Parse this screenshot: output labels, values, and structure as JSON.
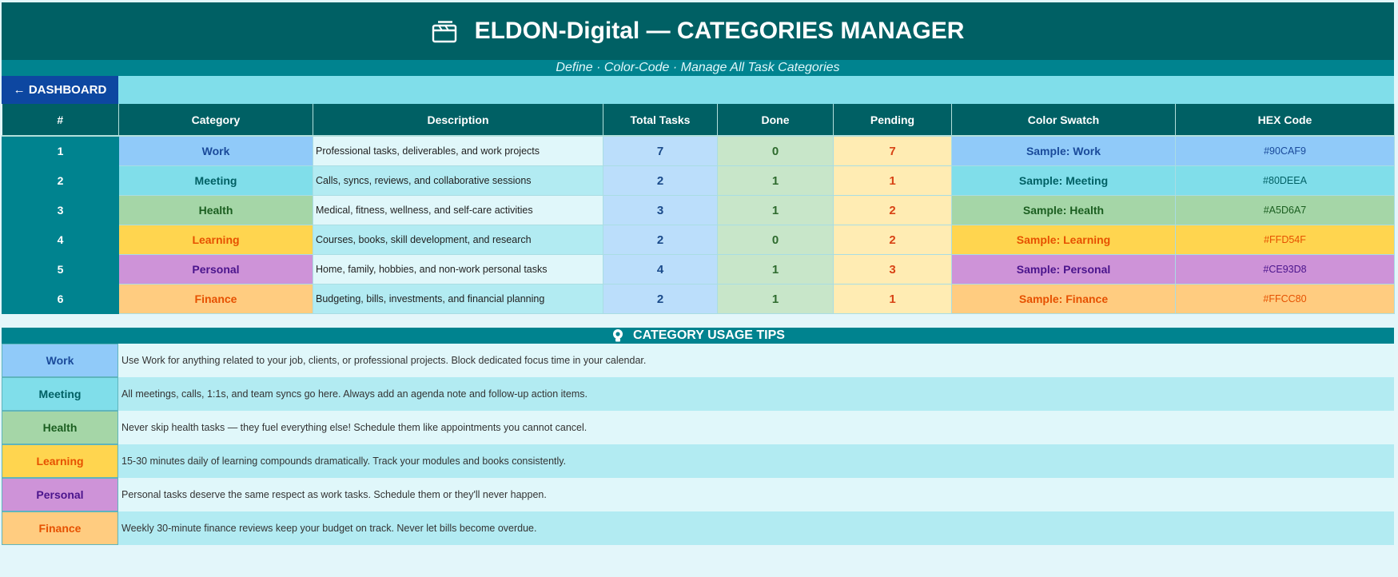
{
  "header": {
    "title": "ELDON-Digital — CATEGORIES MANAGER",
    "subtitle": "Define · Color-Code · Manage All Task Categories",
    "icon": "clapperboard-icon"
  },
  "nav": {
    "dashboard_label": "← DASHBOARD"
  },
  "table": {
    "columns": [
      "#",
      "Category",
      "Description",
      "Total Tasks",
      "Done",
      "Pending",
      "Color Swatch",
      "HEX Code"
    ],
    "rows": [
      {
        "num": "1",
        "category": "Work",
        "description": "Professional tasks, deliverables, and work projects",
        "total": "7",
        "done": "0",
        "pending": "7",
        "swatch": "Sample: Work",
        "hex": "#90CAF9",
        "bg": "#90caf9",
        "fg": "#1a4a9a"
      },
      {
        "num": "2",
        "category": "Meeting",
        "description": "Calls, syncs, reviews, and collaborative sessions",
        "total": "2",
        "done": "1",
        "pending": "1",
        "swatch": "Sample: Meeting",
        "hex": "#80DEEA",
        "bg": "#80deea",
        "fg": "#006064"
      },
      {
        "num": "3",
        "category": "Health",
        "description": "Medical, fitness, wellness, and self-care activities",
        "total": "3",
        "done": "1",
        "pending": "2",
        "swatch": "Sample: Health",
        "hex": "#A5D6A7",
        "bg": "#a5d6a7",
        "fg": "#1b5e20"
      },
      {
        "num": "4",
        "category": "Learning",
        "description": "Courses, books, skill development, and research",
        "total": "2",
        "done": "0",
        "pending": "2",
        "swatch": "Sample: Learning",
        "hex": "#FFD54F",
        "bg": "#ffd54f",
        "fg": "#e65100"
      },
      {
        "num": "5",
        "category": "Personal",
        "description": "Home, family, hobbies, and non-work personal tasks",
        "total": "4",
        "done": "1",
        "pending": "3",
        "swatch": "Sample: Personal",
        "hex": "#CE93D8",
        "bg": "#ce93d8",
        "fg": "#4a148c"
      },
      {
        "num": "6",
        "category": "Finance",
        "description": "Budgeting, bills, investments, and financial planning",
        "total": "2",
        "done": "1",
        "pending": "1",
        "swatch": "Sample: Finance",
        "hex": "#FFCC80",
        "bg": "#ffcc80",
        "fg": "#e65100"
      }
    ]
  },
  "tips": {
    "title": "CATEGORY USAGE TIPS",
    "icon": "lightbulb-icon",
    "items": [
      {
        "label": "Work",
        "text": "Use Work for anything related to your job, clients, or professional projects. Block dedicated focus time in your calendar.",
        "bg": "#90caf9",
        "fg": "#1a4a9a"
      },
      {
        "label": "Meeting",
        "text": "All meetings, calls, 1:1s, and team syncs go here. Always add an agenda note and follow-up action items.",
        "bg": "#80deea",
        "fg": "#006064"
      },
      {
        "label": "Health",
        "text": "Never skip health tasks — they fuel everything else! Schedule them like appointments you cannot cancel.",
        "bg": "#a5d6a7",
        "fg": "#1b5e20"
      },
      {
        "label": "Learning",
        "text": "15-30 minutes daily of learning compounds dramatically. Track your modules and books consistently.",
        "bg": "#ffd54f",
        "fg": "#e65100"
      },
      {
        "label": "Personal",
        "text": "Personal tasks deserve the same respect as work tasks. Schedule them or they'll never happen.",
        "bg": "#ce93d8",
        "fg": "#4a148c"
      },
      {
        "label": "Finance",
        "text": "Weekly 30-minute finance reviews keep your budget on track. Never let bills become overdue.",
        "bg": "#ffcc80",
        "fg": "#e65100"
      }
    ]
  }
}
